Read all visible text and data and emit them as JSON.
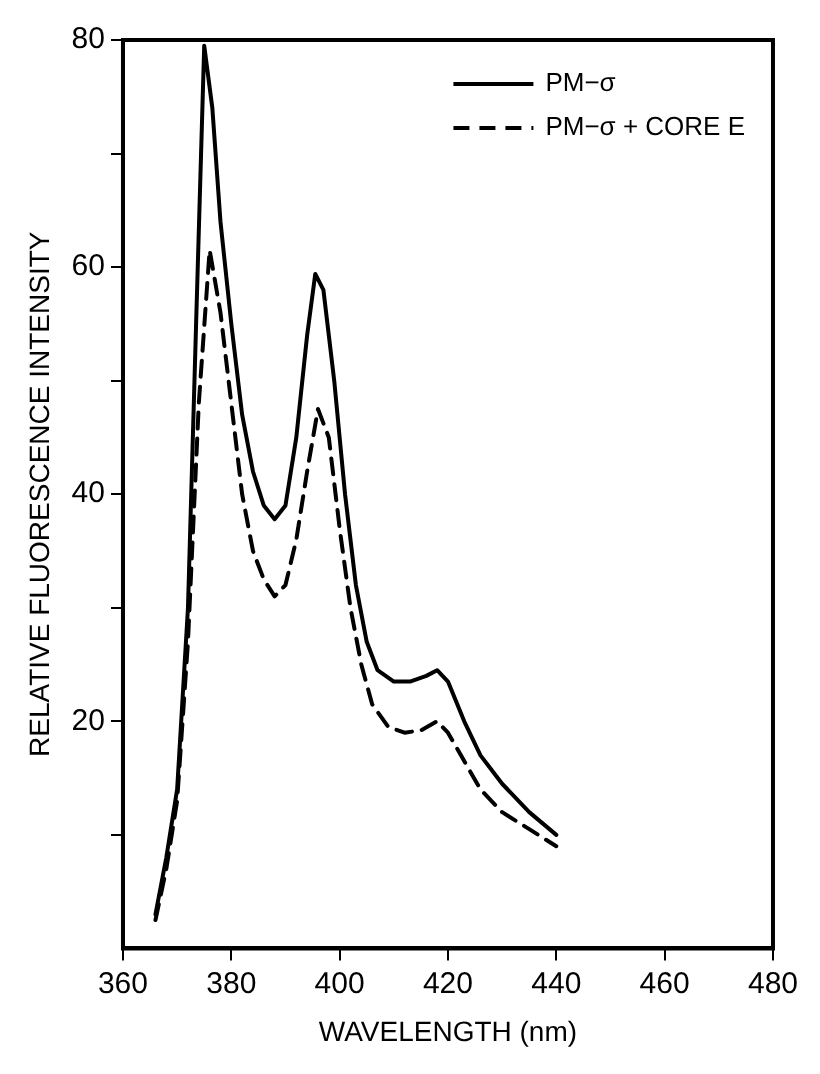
{
  "chart_data": {
    "type": "line",
    "xlabel": "WAVELENGTH (nm)",
    "ylabel": "RELATIVE FLUORESCENCE INTENSITY",
    "xlim": [
      360,
      480
    ],
    "xticks": [
      360,
      380,
      400,
      420,
      440,
      460,
      480
    ],
    "ylim": [
      0,
      80
    ],
    "yticks": [
      {
        "value": 10,
        "label": null
      },
      20,
      {
        "value": 30,
        "label": null
      },
      40,
      {
        "value": 50,
        "label": null
      },
      60,
      {
        "value": 70,
        "label": null
      },
      80
    ],
    "grid": false,
    "legend": "top right",
    "marker": "none",
    "series": [
      {
        "name": "PM−σ",
        "color": "#000000",
        "line_style": "solid",
        "x": [
          366,
          368,
          370,
          372,
          373.5,
          375,
          376.5,
          378,
          380,
          382,
          384,
          386,
          388,
          390,
          392,
          394,
          395.5,
          397,
          399,
          401,
          403,
          405,
          407,
          410,
          413,
          416,
          418,
          420,
          423,
          426,
          430,
          435,
          440
        ],
        "values": [
          3,
          8,
          14,
          30,
          55,
          79.5,
          74,
          64,
          55,
          47,
          42,
          39,
          37.8,
          39,
          45,
          54,
          59.4,
          58,
          50,
          40,
          32,
          27,
          24.5,
          23.5,
          23.5,
          24,
          24.5,
          23.5,
          20,
          17,
          14.5,
          12,
          10
        ]
      },
      {
        "name": "PM−σ + CORE E",
        "color": "#000000",
        "line_style": "dashed",
        "x": [
          366,
          368,
          370,
          372,
          374,
          376,
          378,
          380,
          382,
          384,
          386,
          388,
          390,
          392,
          394,
          396,
          398,
          400,
          402,
          404,
          406,
          409,
          412,
          415,
          418,
          420,
          423,
          426,
          430,
          435,
          440
        ],
        "values": [
          2.5,
          7,
          13,
          27,
          48,
          61.5,
          56,
          48,
          40,
          35,
          32.5,
          31,
          32,
          36,
          42,
          47.5,
          45,
          37,
          30,
          25,
          21.5,
          19.5,
          19,
          19.2,
          20,
          19,
          16.5,
          14,
          12,
          10.5,
          9
        ]
      }
    ]
  }
}
